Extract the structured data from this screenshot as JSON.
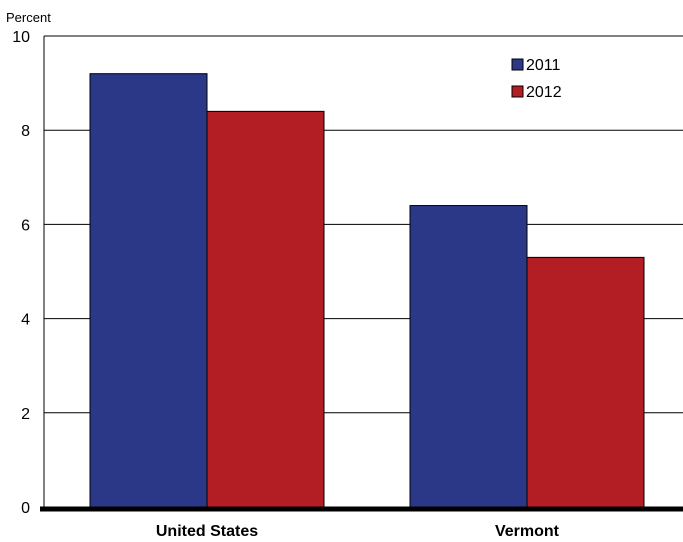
{
  "chart_data": {
    "type": "bar",
    "ylabel": "Percent",
    "ylim": [
      0,
      10
    ],
    "yticks": [
      "0",
      "2",
      "4",
      "6",
      "8",
      "10"
    ],
    "categories": [
      "United States",
      "Vermont"
    ],
    "series": [
      {
        "name": "2011",
        "color": "#2b3787",
        "values": [
          9.2,
          6.4
        ]
      },
      {
        "name": "2012",
        "color": "#b31e24",
        "values": [
          8.4,
          5.3
        ]
      }
    ],
    "grid": true,
    "legend_position": "top-right"
  }
}
